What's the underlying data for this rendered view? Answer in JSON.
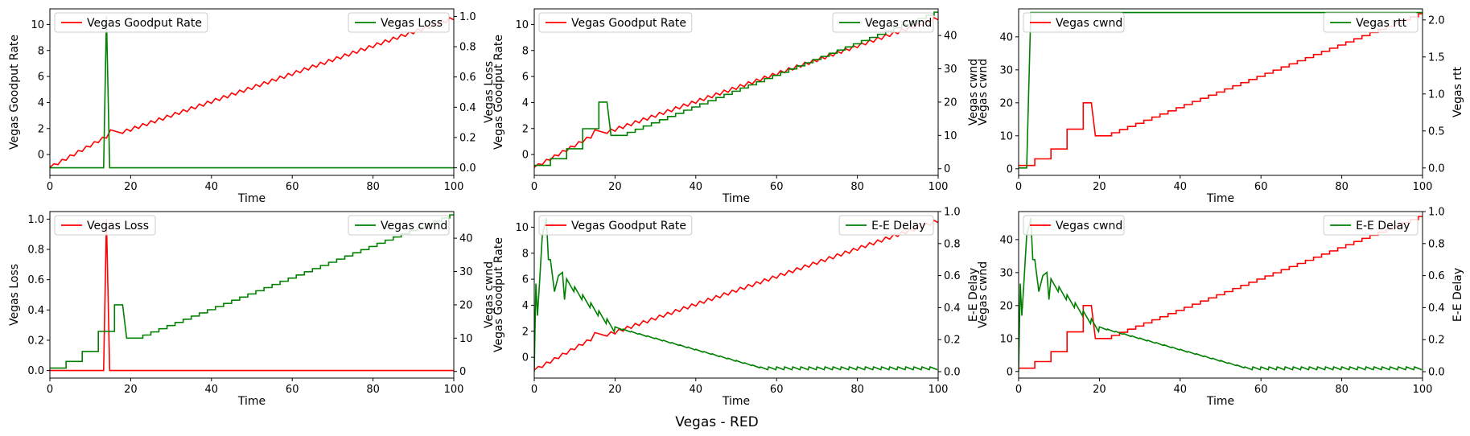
{
  "figure": {
    "suptitle": "Vegas - RED"
  },
  "colors": {
    "primary": "#ff0000",
    "secondary": "#008000",
    "axis": "#000000",
    "legend_edge": "#cccccc"
  },
  "chart_data": [
    {
      "type": "line",
      "xlabel": "Time",
      "xlim": [
        0,
        100
      ],
      "xticks": [
        0,
        20,
        40,
        60,
        80,
        100
      ],
      "left": {
        "label": "Vegas Goodput Rate",
        "series_name": "Vegas Goodput Rate",
        "color": "#ff0000",
        "ylim": [
          -1.6,
          11.2
        ],
        "yticks": [
          0,
          2,
          4,
          6,
          8,
          10
        ],
        "ytick_labels": [
          "0",
          "2",
          "4",
          "6",
          "8",
          "10"
        ],
        "legend": "upper-left",
        "generator": "goodput",
        "values": []
      },
      "right": {
        "label": "Vegas Loss",
        "series_name": "Vegas Loss",
        "color": "#008000",
        "ylim": [
          -0.05,
          1.05
        ],
        "yticks": [
          0,
          0.2,
          0.4,
          0.6,
          0.8,
          1.0
        ],
        "ytick_labels": [
          "0.0",
          "0.2",
          "0.4",
          "0.6",
          "0.8",
          "1.0"
        ],
        "legend": "upper-right",
        "generator": "loss",
        "values": []
      }
    },
    {
      "type": "line",
      "xlabel": "Time",
      "xlim": [
        0,
        100
      ],
      "xticks": [
        0,
        20,
        40,
        60,
        80,
        100
      ],
      "left": {
        "label": "Vegas Goodput Rate",
        "series_name": "Vegas Goodput Rate",
        "color": "#ff0000",
        "ylim": [
          -1.6,
          11.2
        ],
        "yticks": [
          0,
          2,
          4,
          6,
          8,
          10
        ],
        "ytick_labels": [
          "0",
          "2",
          "4",
          "6",
          "8",
          "10"
        ],
        "legend": "upper-left",
        "generator": "goodput",
        "values": []
      },
      "right": {
        "label": "Vegas cwnd",
        "series_name": "Vegas cwnd",
        "color": "#008000",
        "ylim": [
          -2,
          48
        ],
        "yticks": [
          0,
          10,
          20,
          30,
          40
        ],
        "ytick_labels": [
          "0",
          "10",
          "20",
          "30",
          "40"
        ],
        "legend": "upper-right",
        "generator": "cwnd",
        "values": []
      }
    },
    {
      "type": "line",
      "xlabel": "Time",
      "xlim": [
        0,
        100
      ],
      "xticks": [
        0,
        20,
        40,
        60,
        80,
        100
      ],
      "left": {
        "label": "Vegas cwnd",
        "series_name": "Vegas cwnd",
        "color": "#ff0000",
        "ylim": [
          -2,
          48.5
        ],
        "yticks": [
          0,
          10,
          20,
          30,
          40
        ],
        "ytick_labels": [
          "0",
          "10",
          "20",
          "30",
          "40"
        ],
        "legend": "upper-left",
        "generator": "cwnd",
        "values": []
      },
      "right": {
        "label": "Vegas rtt",
        "series_name": "Vegas rtt",
        "color": "#008000",
        "ylim": [
          -0.1,
          2.15
        ],
        "yticks": [
          0,
          0.5,
          1.0,
          1.5,
          2.0
        ],
        "ytick_labels": [
          "0.0",
          "0.5",
          "1.0",
          "1.5",
          "2.0"
        ],
        "legend": "upper-right",
        "generator": "rtt",
        "values": []
      }
    },
    {
      "type": "line",
      "xlabel": "Time",
      "xlim": [
        0,
        100
      ],
      "xticks": [
        0,
        20,
        40,
        60,
        80,
        100
      ],
      "left": {
        "label": "Vegas Loss",
        "series_name": "Vegas Loss",
        "color": "#ff0000",
        "ylim": [
          -0.05,
          1.05
        ],
        "yticks": [
          0,
          0.2,
          0.4,
          0.6,
          0.8,
          1.0
        ],
        "ytick_labels": [
          "0.0",
          "0.2",
          "0.4",
          "0.6",
          "0.8",
          "1.0"
        ],
        "legend": "upper-left",
        "generator": "loss",
        "values": []
      },
      "right": {
        "label": "Vegas cwnd",
        "series_name": "Vegas cwnd",
        "color": "#008000",
        "ylim": [
          -2,
          48
        ],
        "yticks": [
          0,
          10,
          20,
          30,
          40
        ],
        "ytick_labels": [
          "0",
          "10",
          "20",
          "30",
          "40"
        ],
        "legend": "upper-right",
        "generator": "cwnd",
        "values": []
      }
    },
    {
      "type": "line",
      "xlabel": "Time",
      "xlim": [
        0,
        100
      ],
      "xticks": [
        0,
        20,
        40,
        60,
        80,
        100
      ],
      "left": {
        "label": "Vegas Goodput Rate",
        "series_name": "Vegas Goodput Rate",
        "color": "#ff0000",
        "ylim": [
          -1.6,
          11.2
        ],
        "yticks": [
          0,
          2,
          4,
          6,
          8,
          10
        ],
        "ytick_labels": [
          "0",
          "2",
          "4",
          "6",
          "8",
          "10"
        ],
        "legend": "upper-left",
        "generator": "goodput",
        "values": []
      },
      "right": {
        "label": "E-E Delay",
        "series_name": "E-E Delay",
        "color": "#008000",
        "ylim": [
          -0.04,
          1.0
        ],
        "yticks": [
          0,
          0.2,
          0.4,
          0.6,
          0.8,
          1.0
        ],
        "ytick_labels": [
          "0.0",
          "0.2",
          "0.4",
          "0.6",
          "0.8",
          "1.0"
        ],
        "legend": "upper-right",
        "generator": "delay",
        "values": []
      }
    },
    {
      "type": "line",
      "xlabel": "Time",
      "xlim": [
        0,
        100
      ],
      "xticks": [
        0,
        20,
        40,
        60,
        80,
        100
      ],
      "left": {
        "label": "Vegas cwnd",
        "series_name": "Vegas cwnd",
        "color": "#ff0000",
        "ylim": [
          -2,
          48.5
        ],
        "yticks": [
          0,
          10,
          20,
          30,
          40
        ],
        "ytick_labels": [
          "0",
          "10",
          "20",
          "30",
          "40"
        ],
        "legend": "upper-left",
        "generator": "cwnd",
        "values": []
      },
      "right": {
        "label": "E-E Delay",
        "series_name": "E-E Delay",
        "color": "#008000",
        "ylim": [
          -0.04,
          1.0
        ],
        "yticks": [
          0,
          0.2,
          0.4,
          0.6,
          0.8,
          1.0
        ],
        "ytick_labels": [
          "0.0",
          "0.2",
          "0.4",
          "0.6",
          "0.8",
          "1.0"
        ],
        "legend": "upper-right",
        "generator": "delay",
        "values": []
      }
    }
  ]
}
